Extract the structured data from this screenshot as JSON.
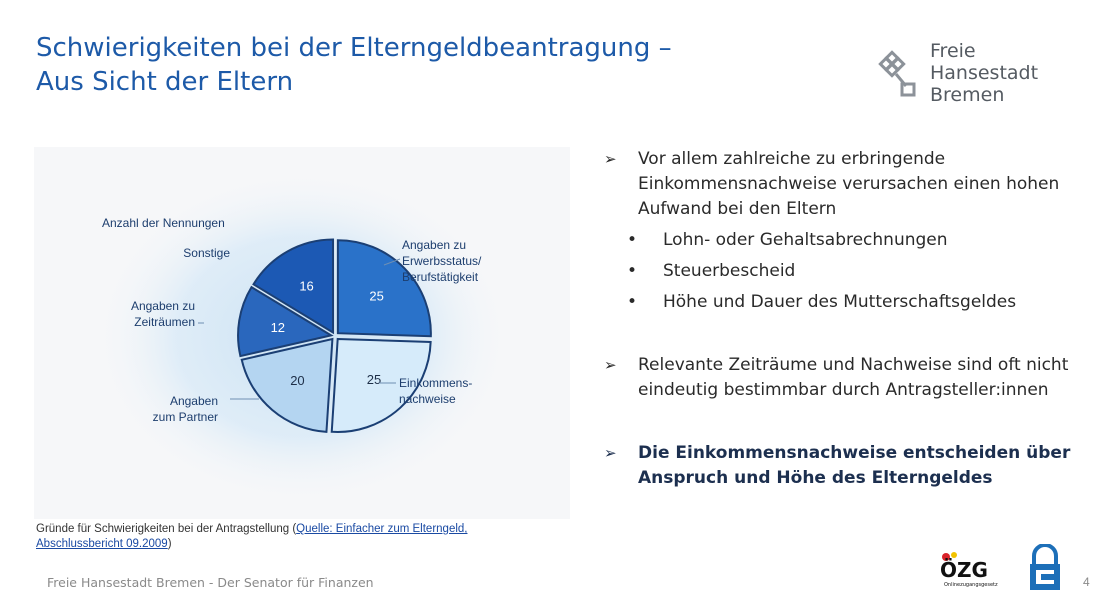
{
  "title": {
    "line1": "Schwierigkeiten bei der Elterngeldbeantragung –",
    "line2": "Aus Sicht der Eltern"
  },
  "logo": {
    "line1": "Freie",
    "line2": "Hansestadt",
    "line3": "Bremen",
    "icon": "bremen-key-icon",
    "color": "#555b62"
  },
  "chart_data": {
    "type": "pie",
    "title": "Anzahl der Nennungen",
    "slices": [
      {
        "label": [
          "Angaben zu",
          "Erwerbsstatus/",
          "Berufstätigkeit"
        ],
        "value": 25,
        "color": "#2a72c9"
      },
      {
        "label": [
          "Einkommens-",
          "nachweise"
        ],
        "value": 25,
        "color": "#d6ebfa"
      },
      {
        "label": [
          "Angaben",
          "zum Partner"
        ],
        "value": 20,
        "color": "#b4d5f1"
      },
      {
        "label": [
          "Angaben zu",
          "Zeiträumen"
        ],
        "value": 12,
        "color": "#2a67bd"
      },
      {
        "label": [
          "Sonstige"
        ],
        "value": 16,
        "color": "#1c59b4"
      }
    ]
  },
  "caption": {
    "text": "Gründe für Schwierigkeiten bei der Antragstellung (",
    "link_line1": "Quelle: Einfacher zum Elterngeld,",
    "link_line2": "Abschlussbericht 09.2009",
    "end": ")"
  },
  "bullets": {
    "b1": "Vor allem zahlreiche zu erbringende Einkommensnachweise verursachen einen hohen Aufwand bei den Eltern",
    "subs": [
      "Lohn- oder Gehaltsabrechnungen",
      "Steuerbescheid",
      "Höhe und Dauer des Mutterschaftsgeldes"
    ],
    "b2": "Relevante Zeiträume und Nachweise sind oft nicht eindeutig bestimmbar durch Antragsteller:innen",
    "b3": "Die Einkommensnachweise entscheiden über Anspruch und Höhe des Elterngeldes",
    "arrow": "➢",
    "dot": "•"
  },
  "footer": {
    "text": "Freie Hansestadt Bremen - Der Senator für Finanzen",
    "page": "4"
  },
  "ozg": {
    "text": "ÖZG",
    "subtext": "Onlinezugangsgesetz",
    "icon": "ozg-logo-icon"
  },
  "lock_icon": "lock-icon",
  "colors": {
    "accent": "#1d5aa8",
    "link": "#1a4aa3"
  }
}
